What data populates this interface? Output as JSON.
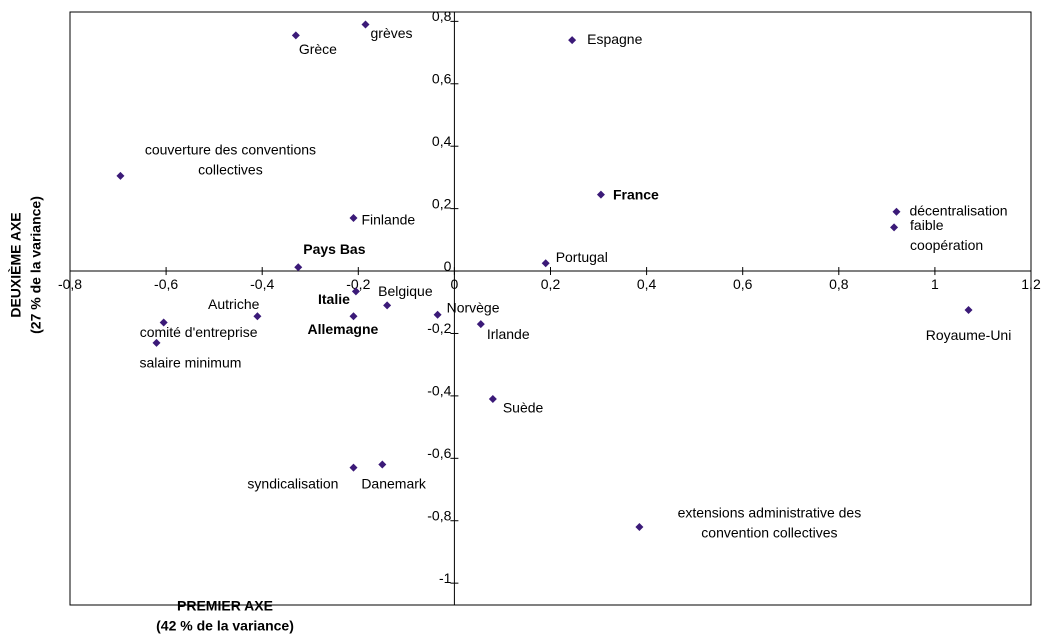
{
  "chart_data": {
    "type": "scatter",
    "xlabel": [
      "PREMIER AXE",
      "(42 % de la variance)"
    ],
    "ylabel": [
      "DEUXIÈME AXE",
      "(27 % de la variance)"
    ],
    "color": "#3b1a78",
    "labels": [
      [
        "Grèce"
      ],
      [
        "grèves"
      ],
      [
        "Espagne"
      ],
      [
        "couverture des conventions",
        "collectives"
      ],
      [
        "France"
      ],
      [
        "décentralisation"
      ],
      [
        "faible",
        "coopération"
      ],
      [
        "Finlande"
      ],
      [
        "Pays Bas"
      ],
      [
        "Portugal"
      ],
      [
        "Italie"
      ],
      [
        "Belgique"
      ],
      [
        "Autriche"
      ],
      [
        "Allemagne"
      ],
      [
        "Norvège"
      ],
      [
        "Irlande"
      ],
      [
        "comité d'entreprise"
      ],
      [
        "salaire minimum"
      ],
      [
        "Royaume-Uni"
      ],
      [
        "Suède"
      ],
      [
        "syndicalisation"
      ],
      [
        "Danemark"
      ],
      [
        "extensions administrative des",
        "convention collectives"
      ]
    ],
    "bold": [
      false,
      false,
      false,
      false,
      true,
      false,
      false,
      false,
      true,
      false,
      true,
      false,
      false,
      true,
      false,
      false,
      false,
      false,
      false,
      false,
      false,
      false,
      false
    ],
    "x": [
      -0.33,
      -0.185,
      0.245,
      -0.695,
      0.305,
      0.92,
      0.915,
      -0.21,
      -0.325,
      0.19,
      -0.205,
      -0.14,
      -0.41,
      -0.21,
      -0.035,
      0.055,
      -0.605,
      -0.62,
      1.07,
      0.08,
      -0.21,
      -0.15,
      0.385
    ],
    "values": [
      0.755,
      0.79,
      0.74,
      0.305,
      0.245,
      0.19,
      0.14,
      0.17,
      0.012,
      0.025,
      -0.065,
      -0.11,
      -0.145,
      -0.145,
      -0.14,
      -0.17,
      -0.165,
      -0.23,
      -0.125,
      -0.41,
      -0.63,
      -0.62,
      -0.82
    ],
    "xlim": [
      -0.8,
      1.2
    ],
    "xticks": [
      {
        "value": -0.8,
        "label": "-0,8"
      },
      {
        "value": -0.6,
        "label": "-0,6"
      },
      {
        "value": -0.4,
        "label": "-0,4"
      },
      {
        "value": -0.2,
        "label": "-0,2"
      },
      0,
      {
        "value": 0.2,
        "label": "0,2"
      },
      {
        "value": 0.4,
        "label": "0,4"
      },
      {
        "value": 0.6,
        "label": "0,6"
      },
      {
        "value": 0.8,
        "label": "0,8"
      },
      1,
      {
        "value": 1.2,
        "label": "1,2"
      }
    ],
    "ylim": [
      -1.07,
      0.83
    ],
    "yticks": [
      {
        "value": 0.8,
        "label": "0,8"
      },
      {
        "value": 0.6,
        "label": "0,6"
      },
      {
        "value": 0.4,
        "label": "0,4"
      },
      {
        "value": 0.2,
        "label": "0,2"
      },
      0,
      {
        "value": -0.2,
        "label": "-0,2"
      },
      {
        "value": -0.4,
        "label": "-0,4"
      },
      {
        "value": -0.6,
        "label": "-0,6"
      },
      {
        "value": -0.8,
        "label": "-0,8"
      },
      -1
    ]
  }
}
